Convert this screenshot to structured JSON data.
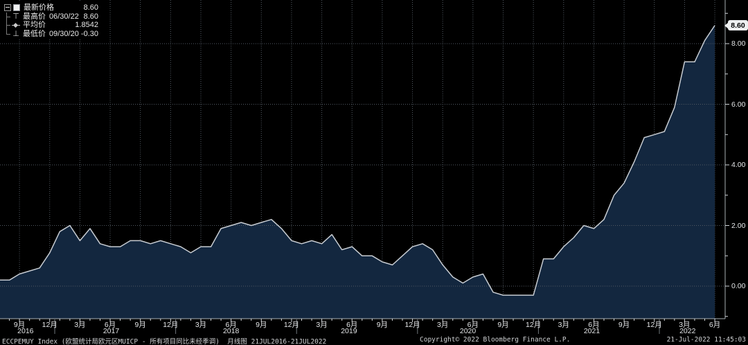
{
  "legend": {
    "rows": [
      {
        "label": "最新价格",
        "date": "",
        "value": "8.60"
      },
      {
        "label": "最高价",
        "date": "06/30/22",
        "value": "8.60"
      },
      {
        "label": "平均价",
        "date": "",
        "value": "1.8542"
      },
      {
        "label": "最低价",
        "date": "09/30/20",
        "value": "-0.30"
      }
    ]
  },
  "icons": {
    "high_marker": "⊤",
    "low_marker": "⊥"
  },
  "y_axis": {
    "last_value_tag": "8.60",
    "ticks": [
      {
        "label": "8.00",
        "value": 8
      },
      {
        "label": "6.00",
        "value": 6
      },
      {
        "label": "4.00",
        "value": 4
      },
      {
        "label": "2.00",
        "value": 2
      },
      {
        "label": "0.00",
        "value": 0
      }
    ]
  },
  "x_axis": {
    "ticks": [
      {
        "m": 2,
        "label": "9月"
      },
      {
        "m": 5,
        "label": "12月"
      },
      {
        "m": 8,
        "label": "3月"
      },
      {
        "m": 11,
        "label": "6月"
      },
      {
        "m": 14,
        "label": "9月"
      },
      {
        "m": 17,
        "label": "12月"
      },
      {
        "m": 20,
        "label": "3月"
      },
      {
        "m": 23,
        "label": "6月"
      },
      {
        "m": 26,
        "label": "9月"
      },
      {
        "m": 29,
        "label": "12月"
      },
      {
        "m": 32,
        "label": "3月"
      },
      {
        "m": 35,
        "label": "6月"
      },
      {
        "m": 38,
        "label": "9月"
      },
      {
        "m": 41,
        "label": "12月"
      },
      {
        "m": 44,
        "label": "3月"
      },
      {
        "m": 47,
        "label": "6月"
      },
      {
        "m": 50,
        "label": "9月"
      },
      {
        "m": 53,
        "label": "12月"
      },
      {
        "m": 56,
        "label": "3月"
      },
      {
        "m": 59,
        "label": "6月"
      },
      {
        "m": 62,
        "label": "9月"
      },
      {
        "m": 65,
        "label": "12月"
      },
      {
        "m": 68,
        "label": "3月"
      },
      {
        "m": 71,
        "label": "6月"
      }
    ],
    "years": [
      {
        "m": 2.6,
        "label": "2016"
      },
      {
        "m": 11.1,
        "label": "2017"
      },
      {
        "m": 23.0,
        "label": "2018"
      },
      {
        "m": 34.7,
        "label": "2019"
      },
      {
        "m": 46.5,
        "label": "2020"
      },
      {
        "m": 58.8,
        "label": "2021"
      },
      {
        "m": 68.3,
        "label": "2022"
      }
    ],
    "year_separators": [
      5.5,
      17.5,
      29.5,
      41.5,
      53.5,
      65.5
    ]
  },
  "status_bar": {
    "left": "ECCPEMUY Index (欧盟统计局欧元区MUICP - 所有项目同比未经季调)  月线图 21JUL2016-21JUL2022",
    "copyright": "Copyright© 2022 Bloomberg Finance L.P.",
    "datetime": "21-Jul-2022 11:45:03"
  },
  "colors": {
    "background": "#000000",
    "area_fill": "#13273f",
    "line": "#c7ccd2",
    "grid": "#525a63",
    "axis": "#a9afb5",
    "tag_bg": "#eef0f1",
    "text": "#e3e5e7"
  },
  "chart_data": {
    "type": "area",
    "security": "ECCPEMUY Index",
    "title": "欧盟统计局欧元区MUICP - 所有项目同比未经季调",
    "period": "月线图",
    "date_range": "21JUL2016-21JUL2022",
    "frequency": "monthly",
    "legend_position": "top-left",
    "grid": "dotted",
    "ylim": [
      -1.0,
      9.4
    ],
    "y_ticks_labeled": [
      0,
      2,
      4,
      6,
      8
    ],
    "stats": {
      "last": 8.6,
      "high": {
        "date": "06/30/22",
        "value": 8.6
      },
      "average": 1.8542,
      "low": {
        "date": "09/30/20",
        "value": -0.3
      }
    },
    "x": [
      "2016-07",
      "2016-08",
      "2016-09",
      "2016-10",
      "2016-11",
      "2016-12",
      "2017-01",
      "2017-02",
      "2017-03",
      "2017-04",
      "2017-05",
      "2017-06",
      "2017-07",
      "2017-08",
      "2017-09",
      "2017-10",
      "2017-11",
      "2017-12",
      "2018-01",
      "2018-02",
      "2018-03",
      "2018-04",
      "2018-05",
      "2018-06",
      "2018-07",
      "2018-08",
      "2018-09",
      "2018-10",
      "2018-11",
      "2018-12",
      "2019-01",
      "2019-02",
      "2019-03",
      "2019-04",
      "2019-05",
      "2019-06",
      "2019-07",
      "2019-08",
      "2019-09",
      "2019-10",
      "2019-11",
      "2019-12",
      "2020-01",
      "2020-02",
      "2020-03",
      "2020-04",
      "2020-05",
      "2020-06",
      "2020-07",
      "2020-08",
      "2020-09",
      "2020-10",
      "2020-11",
      "2020-12",
      "2021-01",
      "2021-02",
      "2021-03",
      "2021-04",
      "2021-05",
      "2021-06",
      "2021-07",
      "2021-08",
      "2021-09",
      "2021-10",
      "2021-11",
      "2021-12",
      "2022-01",
      "2022-02",
      "2022-03",
      "2022-04",
      "2022-05",
      "2022-06"
    ],
    "values": [
      0.2,
      0.2,
      0.4,
      0.5,
      0.6,
      1.1,
      1.8,
      2.0,
      1.5,
      1.9,
      1.4,
      1.3,
      1.3,
      1.5,
      1.5,
      1.4,
      1.5,
      1.4,
      1.3,
      1.1,
      1.3,
      1.3,
      1.9,
      2.0,
      2.1,
      2.0,
      2.1,
      2.2,
      1.9,
      1.5,
      1.4,
      1.5,
      1.4,
      1.7,
      1.2,
      1.3,
      1.0,
      1.0,
      0.8,
      0.7,
      1.0,
      1.3,
      1.4,
      1.2,
      0.7,
      0.3,
      0.1,
      0.3,
      0.4,
      -0.2,
      -0.3,
      -0.3,
      -0.3,
      -0.3,
      0.9,
      0.9,
      1.3,
      1.6,
      2.0,
      1.9,
      2.2,
      3.0,
      3.4,
      4.1,
      4.9,
      5.0,
      5.1,
      5.9,
      7.4,
      7.4,
      8.1,
      8.6
    ]
  }
}
